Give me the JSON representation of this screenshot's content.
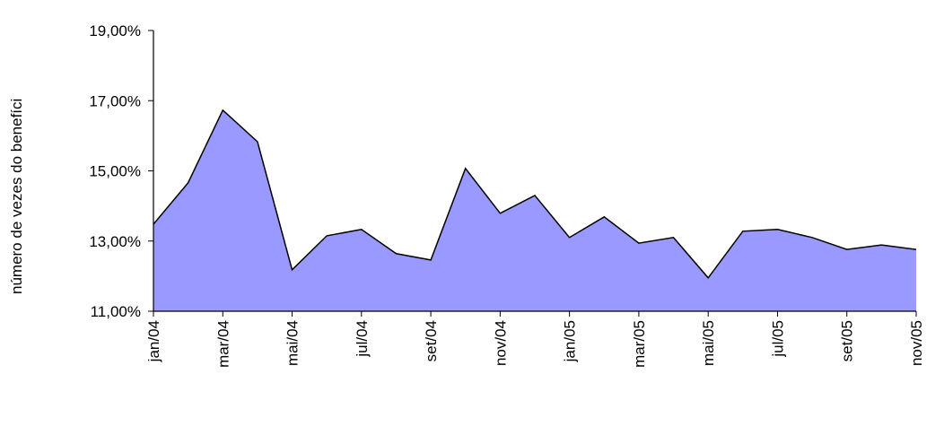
{
  "chart_data": {
    "type": "area",
    "y_label": "número de vezes do benefíci",
    "categories": [
      "jan/04",
      null,
      "mar/04",
      null,
      "mai/04",
      null,
      "jul/04",
      null,
      "set/04",
      null,
      "nov/04",
      null,
      "jan/05",
      null,
      "mar/05",
      null,
      "mai/05",
      null,
      "jul/05",
      null,
      "set/05",
      null,
      "nov/05"
    ],
    "values": [
      13.48,
      14.66,
      16.73,
      15.83,
      12.18,
      13.15,
      13.33,
      12.64,
      12.46,
      15.07,
      13.79,
      14.3,
      13.1,
      13.69,
      12.94,
      13.1,
      11.95,
      13.28,
      13.33,
      13.1,
      12.76,
      12.89,
      12.76
    ],
    "color": "#9999ff",
    "ylim": [
      11,
      19
    ],
    "yticks": [
      {
        "value": 11,
        "label": "11,00%"
      },
      {
        "value": 13,
        "label": "13,00%"
      },
      {
        "value": 15,
        "label": "15,00%"
      },
      {
        "value": 17,
        "label": "17,00%"
      },
      {
        "value": 19,
        "label": "19,00%"
      }
    ],
    "grid": false
  }
}
